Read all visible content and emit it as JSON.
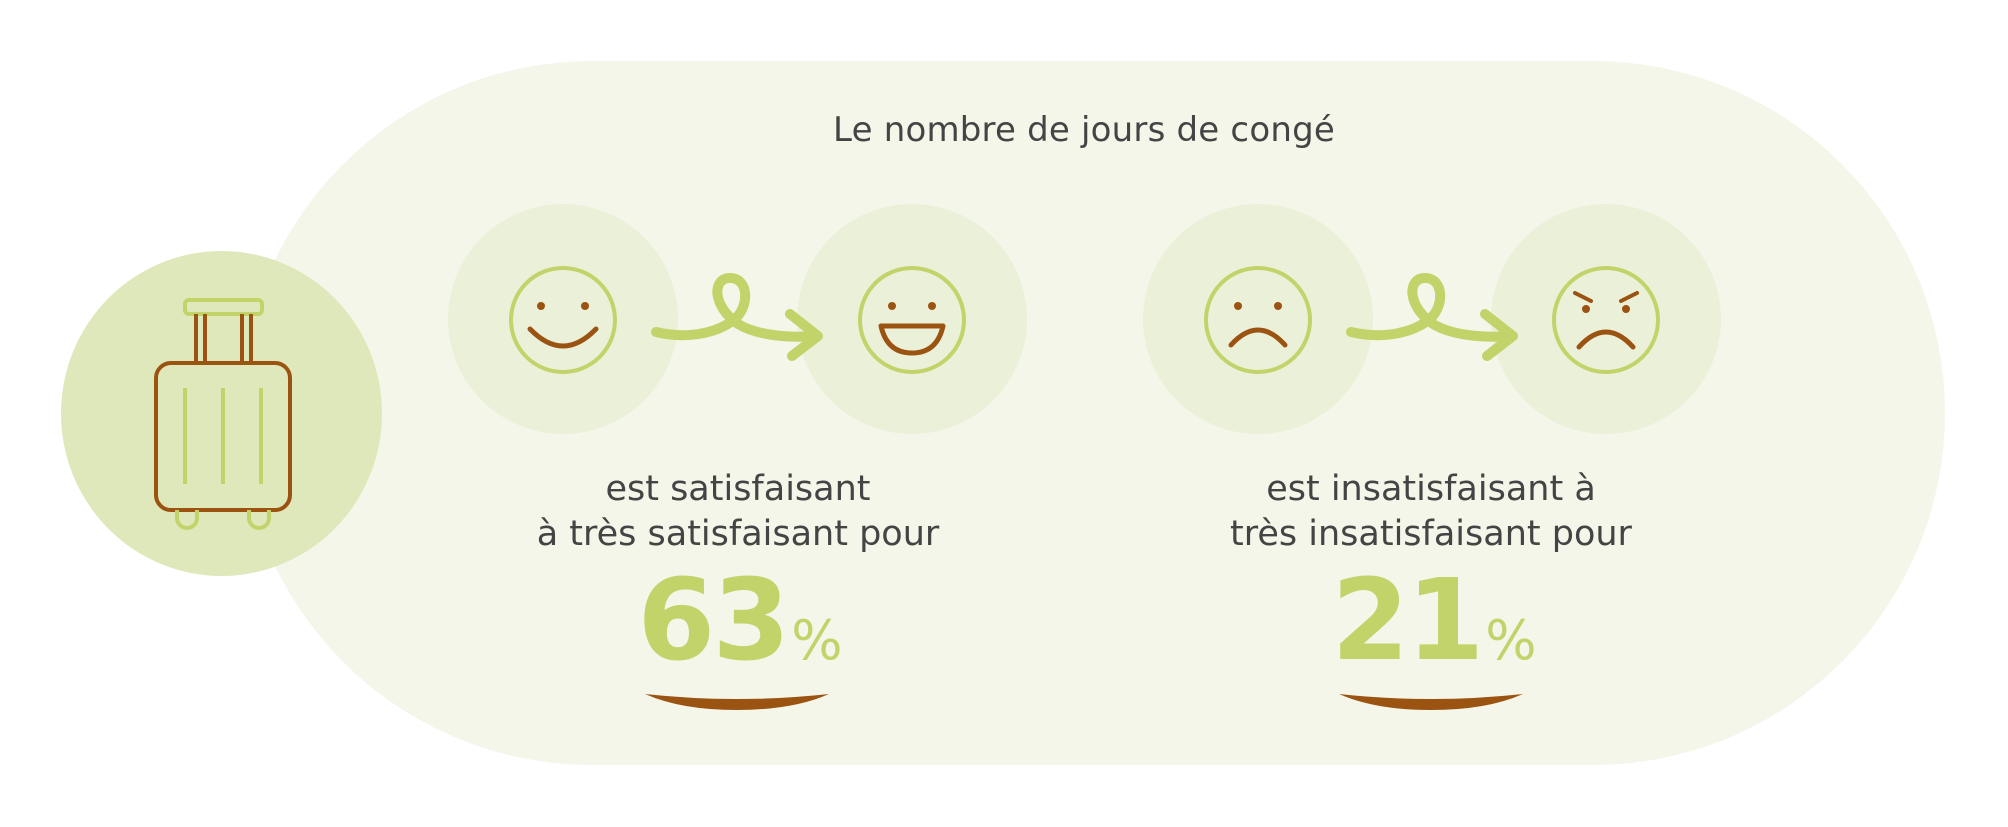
{
  "title": "Le nombre de jours de congé",
  "colors": {
    "panel_background": "#f4f6ea",
    "accent_green": "#c2d36a",
    "accent_brown": "#9b5312",
    "text": "#444444"
  },
  "icons": {
    "suitcase": "suitcase-icon",
    "smile": "smiling-face-icon",
    "grin": "grinning-face-icon",
    "frown": "frowning-face-icon",
    "angry": "angry-face-icon",
    "arrow": "curly-arrow-icon"
  },
  "stats": [
    {
      "caption_line1": "est satisfaisant",
      "caption_line2": "à très satisfaisant pour",
      "value": "63",
      "unit": "%"
    },
    {
      "caption_line1": "est insatisfaisant à",
      "caption_line2": "très insatisfaisant pour",
      "value": "21",
      "unit": "%"
    }
  ]
}
